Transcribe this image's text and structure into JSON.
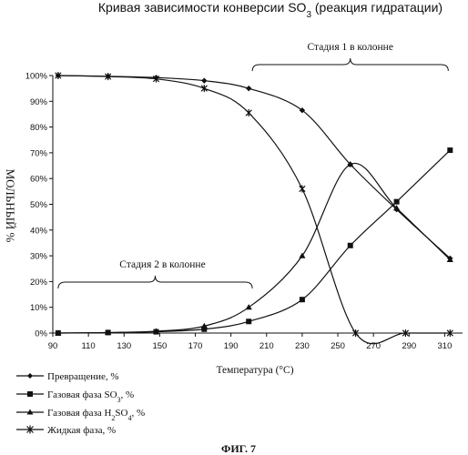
{
  "chart_data": {
    "type": "line",
    "title": "Кривая зависимости конверсии SO3 (реакция гидратации)",
    "title_main": "Кривая зависимости конверсии SO",
    "title_sub": "3",
    "title_tail": " (реакция гидратации)",
    "xlabel": "Температура (°C)",
    "ylabel": "МОЛЬНЫЙ %",
    "xlim": [
      90,
      320
    ],
    "ylim": [
      0,
      100
    ],
    "xticks": [
      90,
      110,
      130,
      150,
      170,
      190,
      210,
      230,
      250,
      270,
      290,
      310
    ],
    "yticks": [
      0,
      10,
      20,
      30,
      40,
      50,
      60,
      70,
      80,
      90,
      100
    ],
    "yunit": "%",
    "grid": false,
    "legend_position": "bottom-left",
    "series": [
      {
        "name": "Превращение, %",
        "marker": "diamond",
        "points": [
          [
            93,
            100
          ],
          [
            121,
            99.7
          ],
          [
            148,
            99.2
          ],
          [
            175,
            98
          ],
          [
            200,
            95
          ],
          [
            230,
            86.5
          ],
          [
            257,
            65.5
          ],
          [
            283,
            48
          ],
          [
            313,
            29
          ]
        ]
      },
      {
        "name": "Газовая фаза SO3, %",
        "marker": "square",
        "points": [
          [
            93,
            0
          ],
          [
            121,
            0.2
          ],
          [
            148,
            0.5
          ],
          [
            175,
            1.5
          ],
          [
            200,
            4.5
          ],
          [
            230,
            13
          ],
          [
            257,
            34
          ],
          [
            283,
            51
          ],
          [
            313,
            71
          ]
        ]
      },
      {
        "name": "Газовая фаза H2SO4, %",
        "marker": "triangle",
        "points": [
          [
            93,
            0
          ],
          [
            121,
            0.2
          ],
          [
            148,
            0.7
          ],
          [
            175,
            2.7
          ],
          [
            200,
            10
          ],
          [
            230,
            30
          ],
          [
            257,
            65.5
          ],
          [
            283,
            48.5
          ],
          [
            313,
            28.5
          ]
        ]
      },
      {
        "name": "Жидкая фаза, %",
        "marker": "star",
        "points": [
          [
            93,
            100
          ],
          [
            121,
            99.6
          ],
          [
            148,
            98.7
          ],
          [
            175,
            95
          ],
          [
            200,
            85.5
          ],
          [
            230,
            56
          ],
          [
            260,
            0
          ],
          [
            288,
            0
          ],
          [
            313,
            0
          ]
        ]
      }
    ],
    "annotations": [
      {
        "text": "Стадия 1 в колонне",
        "from_x": 202,
        "to_x": 312,
        "level": "top"
      },
      {
        "text": "Стадия 2 в колонне",
        "from_x": 93,
        "to_x": 202,
        "level": "middle"
      }
    ],
    "figure_caption": "ФИГ. 7"
  },
  "legend": [
    {
      "text": "Превращение, %"
    },
    {
      "main": "Газовая фаза SO",
      "sub": "3",
      "tail": ", %"
    },
    {
      "main": "Газовая фаза H",
      "sub": "2",
      "mid": "SO",
      "sub2": "4",
      "tail": ", %"
    },
    {
      "text": "Жидкая фаза, %"
    }
  ]
}
